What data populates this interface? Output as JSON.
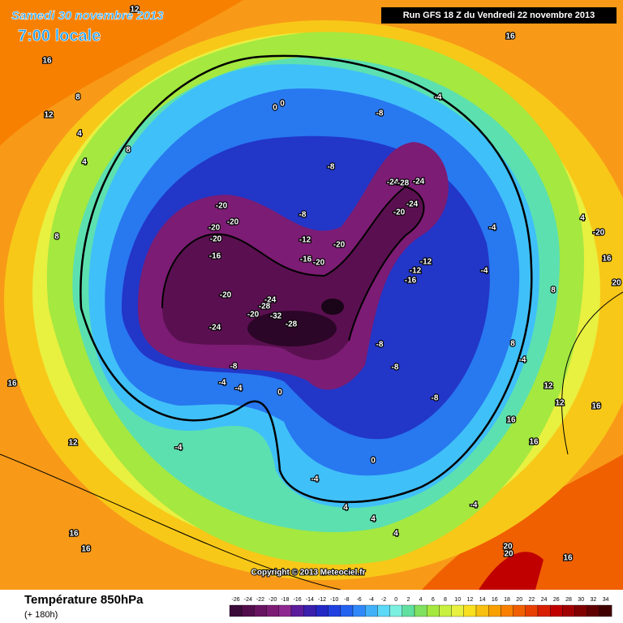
{
  "header": {
    "date": "Samedi 30 novembre 2013",
    "time": "7:00 locale",
    "run": "Run GFS 18 Z du Vendredi 22 novembre 2013"
  },
  "copyright": "Copyright © 2013 Meteociel.fr",
  "footer": {
    "title": "Température 850hPa",
    "lead": "(+ 180h)"
  },
  "scale": [
    {
      "label": "-26",
      "color": "#3a0a38"
    },
    {
      "label": "-24",
      "color": "#520e4c"
    },
    {
      "label": "-22",
      "color": "#681460"
    },
    {
      "label": "-20",
      "color": "#7c1c74"
    },
    {
      "label": "-18",
      "color": "#8e2890"
    },
    {
      "label": "-16",
      "color": "#5c1c9c"
    },
    {
      "label": "-14",
      "color": "#3a20ac"
    },
    {
      "label": "-12",
      "color": "#2428c4"
    },
    {
      "label": "-10",
      "color": "#2040e0"
    },
    {
      "label": "-8",
      "color": "#2462f0"
    },
    {
      "label": "-6",
      "color": "#3088f8"
    },
    {
      "label": "-4",
      "color": "#40b0f8"
    },
    {
      "label": "-2",
      "color": "#5cd8f8"
    },
    {
      "label": "0",
      "color": "#7cf0e0"
    },
    {
      "label": "2",
      "color": "#60e0a0"
    },
    {
      "label": "4",
      "color": "#80e060"
    },
    {
      "label": "6",
      "color": "#a4e840"
    },
    {
      "label": "8",
      "color": "#c8f040"
    },
    {
      "label": "10",
      "color": "#e8f040"
    },
    {
      "label": "12",
      "color": "#f8e020"
    },
    {
      "label": "14",
      "color": "#f8c010"
    },
    {
      "label": "16",
      "color": "#f8a000"
    },
    {
      "label": "18",
      "color": "#f88000"
    },
    {
      "label": "20",
      "color": "#f06000"
    },
    {
      "label": "22",
      "color": "#e84000"
    },
    {
      "label": "24",
      "color": "#d82000"
    },
    {
      "label": "26",
      "color": "#c00000"
    },
    {
      "label": "28",
      "color": "#a00000"
    },
    {
      "label": "30",
      "color": "#800000"
    },
    {
      "label": "32",
      "color": "#600000"
    },
    {
      "label": "34",
      "color": "#400000"
    }
  ],
  "map_labels": [
    "12",
    "16",
    "16",
    "12",
    "8",
    "4",
    "4",
    "8",
    "8",
    "0",
    "0",
    "-8",
    "-4",
    "-8",
    "-8",
    "-24",
    "-28",
    "-24",
    "-20",
    "-24",
    "-20",
    "-20",
    "-20",
    "-20",
    "-16",
    "-12",
    "-16",
    "-20",
    "-20",
    "-12",
    "-16",
    "-12",
    "-20",
    "-24",
    "-28",
    "-32",
    "-28",
    "-24",
    "-20",
    "-8",
    "-4",
    "-4",
    "0",
    "-4",
    "-8",
    "-8",
    "-8",
    "-4",
    "0",
    "-4",
    "4",
    "4",
    "4",
    "8",
    "12",
    "16",
    "16",
    "12",
    "16",
    "16",
    "12",
    "16",
    "16",
    "20",
    "20",
    "16",
    "-4",
    "4",
    "-20",
    "20",
    "-4",
    "-4",
    "8",
    "16"
  ]
}
